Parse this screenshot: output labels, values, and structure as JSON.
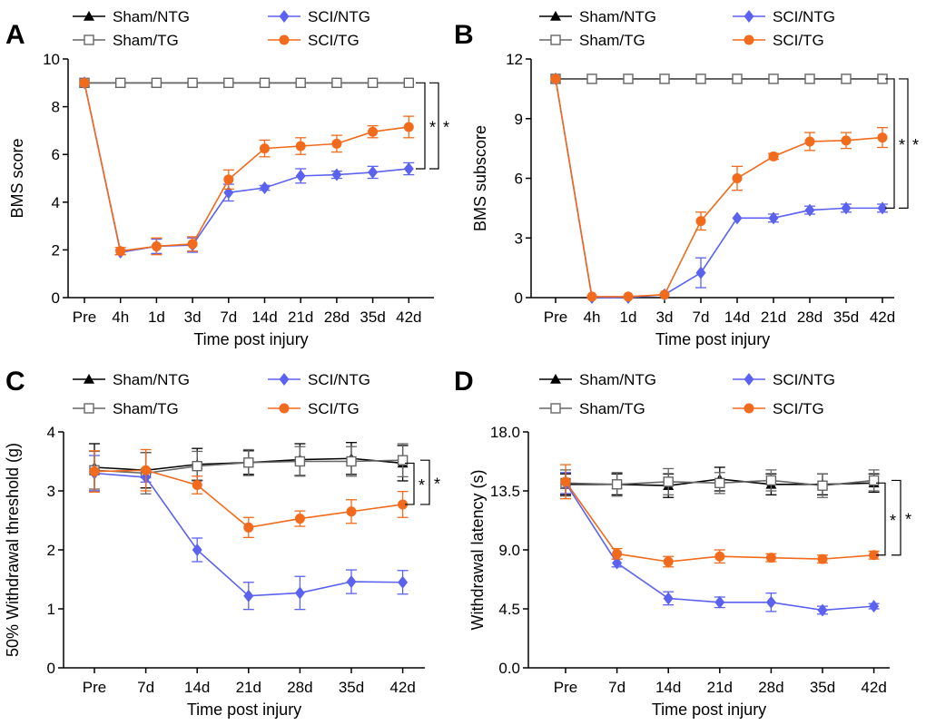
{
  "colors": {
    "sham_ntg": "#000000",
    "sham_tg": "#666666",
    "sci_ntg": "#5b62f0",
    "sci_tg": "#f26a1b"
  },
  "chart_data": [
    {
      "id": "A",
      "panel_label": "A",
      "type": "line",
      "xlabel": "Time post injury",
      "ylabel": "BMS score",
      "categories": [
        "Pre",
        "4h",
        "1d",
        "3d",
        "7d",
        "14d",
        "21d",
        "28d",
        "35d",
        "42d"
      ],
      "ylim": [
        0,
        10
      ],
      "yticks": [
        "0",
        "2",
        "4",
        "6",
        "8",
        "10"
      ],
      "legend": [
        "Sham/NTG",
        "Sham/TG",
        "SCI/NTG",
        "SCI/TG"
      ],
      "series": [
        {
          "name": "Sham/NTG",
          "marker": "triangle",
          "values": [
            9,
            9,
            9,
            9,
            9,
            9,
            9,
            9,
            9,
            9
          ],
          "err": [
            0,
            0,
            0,
            0,
            0,
            0,
            0,
            0,
            0,
            0
          ]
        },
        {
          "name": "Sham/TG",
          "marker": "square",
          "values": [
            9,
            9,
            9,
            9,
            9,
            9,
            9,
            9,
            9,
            9
          ],
          "err": [
            0,
            0,
            0,
            0,
            0,
            0,
            0,
            0,
            0,
            0
          ]
        },
        {
          "name": "SCI/NTG",
          "marker": "diamond",
          "values": [
            9,
            1.9,
            2.15,
            2.2,
            4.4,
            4.6,
            5.1,
            5.15,
            5.25,
            5.4
          ],
          "err": [
            0,
            0.1,
            0.3,
            0.3,
            0.35,
            0.1,
            0.3,
            0.15,
            0.25,
            0.25
          ]
        },
        {
          "name": "SCI/TG",
          "marker": "circle",
          "values": [
            9,
            1.95,
            2.15,
            2.25,
            4.95,
            6.25,
            6.35,
            6.45,
            6.95,
            7.15
          ],
          "err": [
            0,
            0.15,
            0.35,
            0.3,
            0.4,
            0.35,
            0.35,
            0.35,
            0.25,
            0.45
          ]
        }
      ],
      "significance": [
        "*",
        "*"
      ]
    },
    {
      "id": "B",
      "panel_label": "B",
      "type": "line",
      "xlabel": "Time post injury",
      "ylabel": "BMS subscore",
      "categories": [
        "Pre",
        "4h",
        "1d",
        "3d",
        "7d",
        "14d",
        "21d",
        "28d",
        "35d",
        "42d"
      ],
      "ylim": [
        0,
        12
      ],
      "yticks": [
        "0",
        "3",
        "6",
        "9",
        "12"
      ],
      "legend": [
        "Sham/NTG",
        "Sham/TG",
        "SCI/NTG",
        "SCI/TG"
      ],
      "series": [
        {
          "name": "Sham/NTG",
          "marker": "triangle",
          "values": [
            11,
            11,
            11,
            11,
            11,
            11,
            11,
            11,
            11,
            11
          ],
          "err": [
            0,
            0,
            0,
            0,
            0,
            0,
            0,
            0,
            0,
            0
          ]
        },
        {
          "name": "Sham/TG",
          "marker": "square",
          "values": [
            11,
            11,
            11,
            11,
            11,
            11,
            11,
            11,
            11,
            11
          ],
          "err": [
            0,
            0,
            0,
            0,
            0,
            0,
            0,
            0,
            0,
            0
          ]
        },
        {
          "name": "SCI/NTG",
          "marker": "diamond",
          "values": [
            11,
            0,
            0,
            0.15,
            1.25,
            4.0,
            4.0,
            4.4,
            4.5,
            4.5
          ],
          "err": [
            0,
            0,
            0,
            0,
            0.75,
            0,
            0.2,
            0.2,
            0.2,
            0.2
          ]
        },
        {
          "name": "SCI/TG",
          "marker": "circle",
          "values": [
            11,
            0.05,
            0.05,
            0.15,
            3.85,
            6.0,
            7.1,
            7.85,
            7.9,
            8.05
          ],
          "err": [
            0,
            0,
            0,
            0,
            0.45,
            0.6,
            0.15,
            0.45,
            0.4,
            0.5
          ]
        }
      ],
      "significance": [
        "*",
        "*"
      ]
    },
    {
      "id": "C",
      "panel_label": "C",
      "type": "line",
      "xlabel": "Time post injury",
      "ylabel": "50% Withdrawal threshold (g)",
      "categories": [
        "Pre",
        "7d",
        "14d",
        "21d",
        "28d",
        "35d",
        "42d"
      ],
      "ylim": [
        0,
        4
      ],
      "yticks": [
        "0",
        "1",
        "2",
        "3",
        "4"
      ],
      "legend": [
        "Sham/NTG",
        "Sham/TG",
        "SCI/NTG",
        "SCI/TG"
      ],
      "series": [
        {
          "name": "Sham/NTG",
          "marker": "triangle",
          "values": [
            3.4,
            3.35,
            3.45,
            3.48,
            3.53,
            3.55,
            3.47
          ],
          "err": [
            0.4,
            0.3,
            0.27,
            0.2,
            0.27,
            0.27,
            0.3
          ]
        },
        {
          "name": "Sham/TG",
          "marker": "square",
          "values": [
            3.35,
            3.3,
            3.42,
            3.48,
            3.5,
            3.5,
            3.52
          ],
          "err": [
            0.32,
            0.35,
            0.25,
            0.22,
            0.25,
            0.25,
            0.28
          ]
        },
        {
          "name": "SCI/NTG",
          "marker": "diamond",
          "values": [
            3.3,
            3.23,
            2.0,
            1.22,
            1.27,
            1.46,
            1.45
          ],
          "err": [
            0.3,
            0.08,
            0.2,
            0.23,
            0.28,
            0.2,
            0.2
          ]
        },
        {
          "name": "SCI/TG",
          "marker": "circle",
          "values": [
            3.33,
            3.35,
            3.1,
            2.38,
            2.53,
            2.65,
            2.77
          ],
          "err": [
            0.35,
            0.35,
            0.15,
            0.17,
            0.13,
            0.2,
            0.22
          ]
        }
      ],
      "significance": [
        "*",
        "*"
      ]
    },
    {
      "id": "D",
      "panel_label": "D",
      "type": "line",
      "xlabel": "Time post injury",
      "ylabel": "Withdrawal latency (s)",
      "categories": [
        "Pre",
        "7d",
        "14d",
        "21d",
        "28d",
        "35d",
        "42d"
      ],
      "ylim": [
        0,
        18
      ],
      "yticks": [
        "0.0",
        "4.5",
        "9.0",
        "13.5",
        "18.0"
      ],
      "legend": [
        "Sham/NTG",
        "Sham/TG",
        "SCI/NTG",
        "SCI/TG"
      ],
      "series": [
        {
          "name": "Sham/NTG",
          "marker": "triangle",
          "values": [
            14.0,
            14.0,
            13.9,
            14.4,
            14.0,
            14.0,
            14.1
          ],
          "err": [
            0.8,
            0.8,
            0.9,
            0.9,
            0.8,
            0.8,
            0.7
          ]
        },
        {
          "name": "Sham/TG",
          "marker": "square",
          "values": [
            14.1,
            14.0,
            14.2,
            14.1,
            14.3,
            13.9,
            14.3
          ],
          "err": [
            1.0,
            0.9,
            1.0,
            0.8,
            0.8,
            0.9,
            0.8
          ]
        },
        {
          "name": "SCI/NTG",
          "marker": "diamond",
          "values": [
            14.1,
            8.0,
            5.3,
            5.0,
            5.0,
            4.4,
            4.7
          ],
          "err": [
            0.8,
            0.3,
            0.5,
            0.4,
            0.7,
            0.3,
            0.2
          ]
        },
        {
          "name": "SCI/TG",
          "marker": "circle",
          "values": [
            14.2,
            8.7,
            8.1,
            8.5,
            8.4,
            8.3,
            8.6
          ],
          "err": [
            1.3,
            0.4,
            0.4,
            0.5,
            0.3,
            0.3,
            0.3
          ]
        }
      ],
      "significance": [
        "*",
        "*"
      ]
    }
  ]
}
